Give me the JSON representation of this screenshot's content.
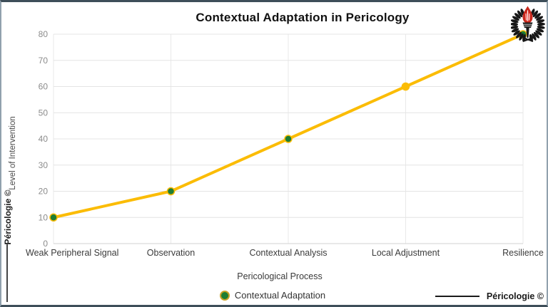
{
  "branding": {
    "left_watermark": "Péricologie ©",
    "bottom_watermark": "Péricologie ©"
  },
  "icons": {
    "logo": "torch-in-laurel-wreath"
  },
  "chart_data": {
    "type": "line",
    "title": "Contextual Adaptation in Pericology",
    "categories": [
      "Weak Peripheral Signal",
      "Observation",
      "Contextual Analysis",
      "Local Adjustment",
      "Resilience"
    ],
    "series": [
      {
        "name": "Contextual Adaptation",
        "values": [
          10,
          20,
          40,
          60,
          80
        ]
      }
    ],
    "xlabel": "Pericological Process",
    "ylabel": "Level of Intervention",
    "ylim": [
      0,
      80
    ],
    "ytick_step": 10,
    "grid": true,
    "legend_position": "bottom",
    "line_color": "#fbbc04",
    "point_color": "#1e7e34",
    "point_colors": [
      "#1e7e34",
      "#1e7e34",
      "#1e7e34",
      "#fbbc04",
      "#1e7e34"
    ],
    "flame_color": "#c8281c",
    "wreath_color": "#161616"
  }
}
